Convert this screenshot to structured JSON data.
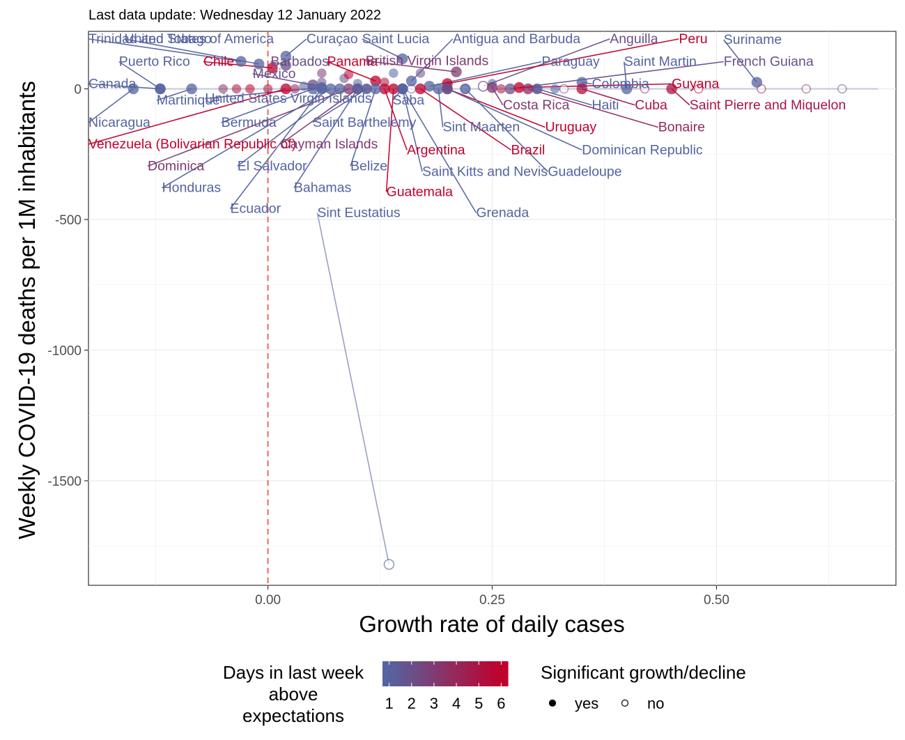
{
  "chart_data": {
    "type": "scatter",
    "subtitle": "Last data update: Wednesday 12 January 2022",
    "xlabel": "Growth rate of daily cases",
    "ylabel": "Weekly COVID-19 deaths per 1M inhabitants",
    "xlim": [
      -0.2,
      0.7
    ],
    "ylim": [
      -1900,
      220
    ],
    "x_ticks": [
      {
        "value": 0.0,
        "label": "0.00"
      },
      {
        "value": 0.25,
        "label": "0.25"
      },
      {
        "value": 0.5,
        "label": "0.50"
      }
    ],
    "y_ticks": [
      {
        "value": 0,
        "label": "0"
      },
      {
        "value": -500,
        "label": "-500"
      },
      {
        "value": -1000,
        "label": "-1000"
      },
      {
        "value": -1500,
        "label": "-1500"
      }
    ],
    "reference_line": {
      "x": 0,
      "color": "#e8695a",
      "style": "dashed"
    },
    "color_low": "#5563a0",
    "color_high": "#c0002c",
    "legend": {
      "color_title_lines": [
        "Days in last week",
        "above",
        "expectations"
      ],
      "color_values": [
        "1",
        "2",
        "3",
        "4",
        "5",
        "6"
      ],
      "shape_title": "Significant growth/decline",
      "shape_items": [
        {
          "label": "yes",
          "filled": true
        },
        {
          "label": "no",
          "filled": false
        }
      ]
    },
    "points": [
      {
        "name": "Trinidad and Tobago",
        "x": -0.03,
        "y": 105,
        "days": 1,
        "sig": true,
        "lx": -0.2,
        "ly": 175
      },
      {
        "name": "United States of America",
        "x": -0.01,
        "y": 95,
        "days": 1,
        "sig": true,
        "lx": -0.16,
        "ly": 175
      },
      {
        "name": "Curaçao",
        "x": 0.02,
        "y": 125,
        "days": 1,
        "sig": true,
        "lx": 0.043,
        "ly": 175
      },
      {
        "name": "Saint Lucia",
        "x": 0.15,
        "y": 115,
        "days": 1,
        "sig": true,
        "lx": 0.105,
        "ly": 175
      },
      {
        "name": "Antigua and Barbuda",
        "x": 0.16,
        "y": 30,
        "days": 1,
        "sig": true,
        "lx": 0.206,
        "ly": 175
      },
      {
        "name": "Anguilla",
        "x": 0.24,
        "y": 10,
        "days": 2,
        "sig": false,
        "lx": 0.381,
        "ly": 175
      },
      {
        "name": "Peru",
        "x": 0.2,
        "y": 20,
        "days": 6,
        "sig": true,
        "lx": 0.458,
        "ly": 175
      },
      {
        "name": "Suriname",
        "x": 0.545,
        "y": 25,
        "days": 1,
        "sig": true,
        "lx": 0.508,
        "ly": 172
      },
      {
        "name": "Puerto Rico",
        "x": -0.12,
        "y": 0,
        "days": 1,
        "sig": true,
        "lx": -0.166,
        "ly": 88
      },
      {
        "name": "Chile",
        "x": 0.005,
        "y": 80,
        "days": 6,
        "sig": true,
        "lx": -0.072,
        "ly": 88
      },
      {
        "name": "Barbados",
        "x": 0.02,
        "y": 90,
        "days": 2,
        "sig": true,
        "lx": 0.003,
        "ly": 88
      },
      {
        "name": "Panama",
        "x": 0.12,
        "y": 30,
        "days": 6,
        "sig": true,
        "lx": 0.066,
        "ly": 88
      },
      {
        "name": "British Virgin Islands",
        "x": 0.21,
        "y": 65,
        "days": 3,
        "sig": true,
        "lx": 0.109,
        "ly": 91
      },
      {
        "name": "Paraguay",
        "x": 0.18,
        "y": 10,
        "days": 1,
        "sig": true,
        "lx": 0.305,
        "ly": 88
      },
      {
        "name": "Saint Martin",
        "x": 0.4,
        "y": 0,
        "days": 1,
        "sig": true,
        "lx": 0.397,
        "ly": 88
      },
      {
        "name": "French Guiana",
        "x": 0.27,
        "y": 0,
        "days": 2,
        "sig": true,
        "lx": 0.508,
        "ly": 88
      },
      {
        "name": "Mexico",
        "x": 0.05,
        "y": 15,
        "days": 2,
        "sig": true,
        "lx": -0.017,
        "ly": 42
      },
      {
        "name": "Canada",
        "x": -0.12,
        "y": 0,
        "days": 1,
        "sig": true,
        "lx": -0.2,
        "ly": 3
      },
      {
        "name": "Colombia",
        "x": 0.35,
        "y": 25,
        "days": 1,
        "sig": true,
        "lx": 0.361,
        "ly": 3
      },
      {
        "name": "Guyana",
        "x": 0.28,
        "y": 5,
        "days": 6,
        "sig": true,
        "lx": 0.45,
        "ly": 3
      },
      {
        "name": "Martinique",
        "x": -0.085,
        "y": 0,
        "days": 1,
        "sig": true,
        "lx": -0.124,
        "ly": -60
      },
      {
        "name": "United States Virgin Islands",
        "x": 0.06,
        "y": 5,
        "days": 1,
        "sig": true,
        "lx": -0.07,
        "ly": -53
      },
      {
        "name": "Saba",
        "x": 0.15,
        "y": 0,
        "days": 1,
        "sig": true,
        "lx": 0.139,
        "ly": -60
      },
      {
        "name": "Costa Rica",
        "x": 0.25,
        "y": 5,
        "days": 3,
        "sig": true,
        "lx": 0.262,
        "ly": -78
      },
      {
        "name": "Haiti",
        "x": 0.3,
        "y": 0,
        "days": 1,
        "sig": true,
        "lx": 0.361,
        "ly": -78
      },
      {
        "name": "Cuba",
        "x": 0.35,
        "y": 0,
        "days": 5,
        "sig": true,
        "lx": 0.409,
        "ly": -78
      },
      {
        "name": "Saint Pierre and Miquelon",
        "x": 0.45,
        "y": 0,
        "days": 5,
        "sig": true,
        "lx": 0.47,
        "ly": -78
      },
      {
        "name": "Nicaragua",
        "x": -0.15,
        "y": 0,
        "days": 1,
        "sig": true,
        "lx": -0.2,
        "ly": -145
      },
      {
        "name": "Bermuda",
        "x": 0.05,
        "y": 0,
        "days": 1,
        "sig": true,
        "lx": -0.052,
        "ly": -145
      },
      {
        "name": "Saint Barthelemy",
        "x": 0.11,
        "y": 0,
        "days": 1,
        "sig": true,
        "lx": 0.05,
        "ly": -145
      },
      {
        "name": "Sint Maarten",
        "x": 0.19,
        "y": 0,
        "days": 1,
        "sig": true,
        "lx": 0.195,
        "ly": -163
      },
      {
        "name": "Uruguay",
        "x": 0.2,
        "y": 0,
        "days": 6,
        "sig": true,
        "lx": 0.309,
        "ly": -163
      },
      {
        "name": "Bonaire",
        "x": 0.29,
        "y": 0,
        "days": 4,
        "sig": true,
        "lx": 0.435,
        "ly": -163
      },
      {
        "name": "Venezuela (Bolivarian Republic of)",
        "x": 0.02,
        "y": 0,
        "days": 6,
        "sig": true,
        "lx": -0.2,
        "ly": -228
      },
      {
        "name": "Cayman Islands",
        "x": 0.1,
        "y": 0,
        "days": 3,
        "sig": true,
        "lx": 0.014,
        "ly": -228
      },
      {
        "name": "Argentina",
        "x": 0.13,
        "y": 0,
        "days": 6,
        "sig": true,
        "lx": 0.155,
        "ly": -250
      },
      {
        "name": "Brazil",
        "x": 0.17,
        "y": 0,
        "days": 6,
        "sig": true,
        "lx": 0.271,
        "ly": -250
      },
      {
        "name": "Dominican Republic",
        "x": 0.2,
        "y": 0,
        "days": 1,
        "sig": true,
        "lx": 0.35,
        "ly": -250
      },
      {
        "name": "Dominica",
        "x": 0.09,
        "y": 0,
        "days": 3,
        "sig": true,
        "lx": -0.134,
        "ly": -312
      },
      {
        "name": "El Salvador",
        "x": 0.08,
        "y": 0,
        "days": 1,
        "sig": true,
        "lx": -0.034,
        "ly": -312
      },
      {
        "name": "Belize",
        "x": 0.12,
        "y": 0,
        "days": 1,
        "sig": true,
        "lx": 0.092,
        "ly": -312
      },
      {
        "name": "Saint Kitts and Nevis",
        "x": 0.15,
        "y": 0,
        "days": 1,
        "sig": true,
        "lx": 0.172,
        "ly": -333
      },
      {
        "name": "Guadeloupe",
        "x": 0.22,
        "y": 0,
        "days": 1,
        "sig": true,
        "lx": 0.312,
        "ly": -333
      },
      {
        "name": "Honduras",
        "x": 0.07,
        "y": 0,
        "days": 1,
        "sig": true,
        "lx": -0.118,
        "ly": -395
      },
      {
        "name": "Bahamas",
        "x": 0.1,
        "y": 0,
        "days": 1,
        "sig": true,
        "lx": 0.029,
        "ly": -395
      },
      {
        "name": "Guatemala",
        "x": 0.14,
        "y": 0,
        "days": 6,
        "sig": true,
        "lx": 0.132,
        "ly": -410
      },
      {
        "name": "Ecuador",
        "x": 0.06,
        "y": 0,
        "days": 1,
        "sig": true,
        "lx": -0.042,
        "ly": -475
      },
      {
        "name": "Sint Eustatius",
        "x": 0.135,
        "y": -1820,
        "days": 1,
        "sig": false,
        "lx": 0.055,
        "ly": -490
      },
      {
        "name": "Grenada",
        "x": 0.15,
        "y": 0,
        "days": 1,
        "sig": true,
        "lx": 0.232,
        "ly": -490
      }
    ]
  }
}
